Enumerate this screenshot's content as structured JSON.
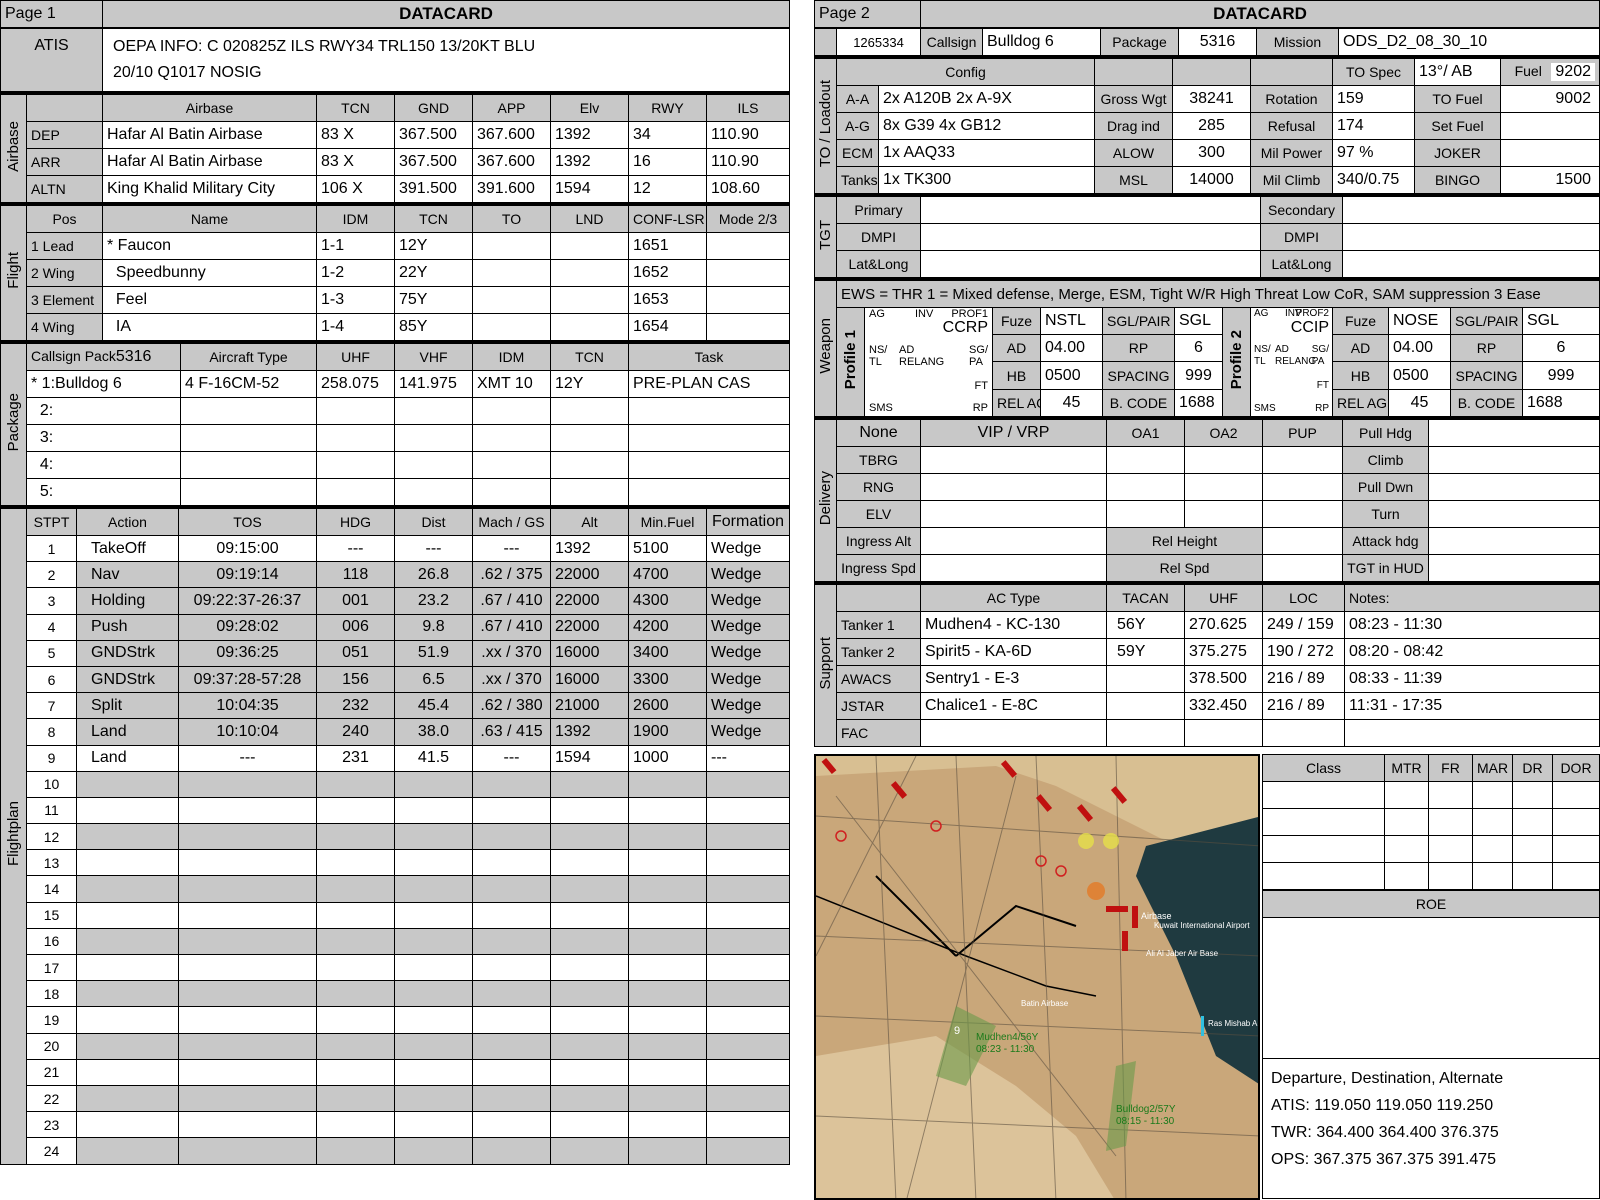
{
  "page1": {
    "page_label": "Page 1",
    "title": "DATACARD",
    "atis": {
      "label": "ATIS",
      "line1": "OEPA INFO: C 020825Z ILS RWY34 TRL150 13/20KT BLU",
      "line2": "20/10 Q1017  NOSIG"
    },
    "airbase": {
      "side": "Airbase",
      "headers": [
        "Airbase",
        "TCN",
        "GND",
        "APP",
        "Elv",
        "RWY",
        "ILS"
      ],
      "rows": [
        {
          "label": "DEP",
          "name": "Hafar Al Batin Airbase",
          "tcn": "83 X",
          "gnd": "367.500",
          "app": "367.600",
          "elv": "1392",
          "rwy": "34",
          "ils": "110.90"
        },
        {
          "label": "ARR",
          "name": "Hafar Al Batin Airbase",
          "tcn": "83 X",
          "gnd": "367.500",
          "app": "367.600",
          "elv": "1392",
          "rwy": "16",
          "ils": "110.90"
        },
        {
          "label": "ALTN",
          "name": "King Khalid Military City",
          "tcn": "106 X",
          "gnd": "391.500",
          "app": "391.600",
          "elv": "1594",
          "rwy": "12",
          "ils": "108.60"
        }
      ]
    },
    "flight": {
      "side": "Flight",
      "headers": [
        "Pos",
        "Name",
        "IDM",
        "TCN",
        "TO",
        "LND",
        "CONF-LSR",
        "Mode 2/3"
      ],
      "rows": [
        {
          "pos": "1 Lead",
          "name": "* Faucon",
          "idm": "1-1",
          "tcn": "12Y",
          "to": "",
          "lnd": "",
          "conf": "1651",
          "mode": ""
        },
        {
          "pos": "2 Wing",
          "name": "  Speedbunny",
          "idm": "1-2",
          "tcn": "22Y",
          "to": "",
          "lnd": "",
          "conf": "1652",
          "mode": ""
        },
        {
          "pos": "3 Element",
          "name": "  Feel",
          "idm": "1-3",
          "tcn": "75Y",
          "to": "",
          "lnd": "",
          "conf": "1653",
          "mode": ""
        },
        {
          "pos": "4 Wing",
          "name": "  IA",
          "idm": "1-4",
          "tcn": "85Y",
          "to": "",
          "lnd": "",
          "conf": "1654",
          "mode": ""
        }
      ]
    },
    "package": {
      "side": "Package",
      "callsign_label": "Callsign Pack",
      "callsign_value": "5316",
      "headers": [
        "Aircraft Type",
        "UHF",
        "VHF",
        "IDM",
        "TCN",
        "Task"
      ],
      "rows": [
        {
          "cs": "* 1:Bulldog 6",
          "type": "4 F-16CM-52",
          "uhf": "258.075",
          "vhf": "141.975",
          "idm": "XMT 10",
          "tcn": "12Y",
          "task": "PRE-PLAN CAS"
        },
        {
          "cs": "  2:",
          "type": "",
          "uhf": "",
          "vhf": "",
          "idm": "",
          "tcn": "",
          "task": ""
        },
        {
          "cs": "  3:",
          "type": "",
          "uhf": "",
          "vhf": "",
          "idm": "",
          "tcn": "",
          "task": ""
        },
        {
          "cs": "  4:",
          "type": "",
          "uhf": "",
          "vhf": "",
          "idm": "",
          "tcn": "",
          "task": ""
        },
        {
          "cs": "  5:",
          "type": "",
          "uhf": "",
          "vhf": "",
          "idm": "",
          "tcn": "",
          "task": ""
        }
      ]
    },
    "flightplan": {
      "side": "Flightplan",
      "headers": [
        "STPT",
        "Action",
        "TOS",
        "HDG",
        "Dist",
        "Mach / GS",
        "Alt",
        "Min.Fuel",
        "Formation"
      ],
      "rows": [
        {
          "n": "1",
          "action": "TakeOff",
          "tos": "09:15:00",
          "hdg": "---",
          "dist": "---",
          "mach": "---",
          "alt": "1392",
          "fuel": "5100",
          "form": "Wedge"
        },
        {
          "n": "2",
          "action": "Nav",
          "tos": "09:19:14",
          "hdg": "118",
          "dist": "26.8",
          "mach": ".62 / 375",
          "alt": "22000",
          "fuel": "4700",
          "form": "Wedge"
        },
        {
          "n": "3",
          "action": "Holding",
          "tos": "09:22:37-26:37",
          "hdg": "001",
          "dist": "23.2",
          "mach": ".67 / 410",
          "alt": "22000",
          "fuel": "4300",
          "form": "Wedge"
        },
        {
          "n": "4",
          "action": "Push",
          "tos": "09:28:02",
          "hdg": "006",
          "dist": "9.8",
          "mach": ".67 / 410",
          "alt": "22000",
          "fuel": "4200",
          "form": "Wedge"
        },
        {
          "n": "5",
          "action": "GNDStrk",
          "tos": "09:36:25",
          "hdg": "051",
          "dist": "51.9",
          "mach": ".xx / 370",
          "alt": "16000",
          "fuel": "3400",
          "form": "Wedge"
        },
        {
          "n": "6",
          "action": "GNDStrk",
          "tos": "09:37:28-57:28",
          "hdg": "156",
          "dist": "6.5",
          "mach": ".xx / 370",
          "alt": "16000",
          "fuel": "3300",
          "form": "Wedge"
        },
        {
          "n": "7",
          "action": "Split",
          "tos": "10:04:35",
          "hdg": "232",
          "dist": "45.4",
          "mach": ".62 / 380",
          "alt": "21000",
          "fuel": "2600",
          "form": "Wedge"
        },
        {
          "n": "8",
          "action": "Land",
          "tos": "10:10:04",
          "hdg": "240",
          "dist": "38.0",
          "mach": ".63 / 415",
          "alt": "1392",
          "fuel": "1900",
          "form": "Wedge"
        },
        {
          "n": "9",
          "action": "Land",
          "tos": "---",
          "hdg": "231",
          "dist": "41.5",
          "mach": "---",
          "alt": "1594",
          "fuel": "1000",
          "form": "---"
        },
        {
          "n": "10"
        },
        {
          "n": "11"
        },
        {
          "n": "12"
        },
        {
          "n": "13"
        },
        {
          "n": "14"
        },
        {
          "n": "15"
        },
        {
          "n": "16"
        },
        {
          "n": "17"
        },
        {
          "n": "18"
        },
        {
          "n": "19"
        },
        {
          "n": "20"
        },
        {
          "n": "21"
        },
        {
          "n": "22"
        },
        {
          "n": "23"
        },
        {
          "n": "24"
        }
      ]
    }
  },
  "page2": {
    "page_label": "Page 2",
    "title": "DATACARD",
    "top": {
      "id": "1265334",
      "callsign_label": "Callsign",
      "callsign": "Bulldog 6",
      "package_label": "Package",
      "package": "5316",
      "mission_label": "Mission",
      "mission": "ODS_D2_08_30_10"
    },
    "loadout": {
      "side": "TO / Loadout",
      "config_label": "Config",
      "rows": [
        {
          "l": "A-A",
          "v": "2x A120B 2x A-9X",
          "k1": "Gross Wgt",
          "v1": "38241",
          "k2": "Rotation",
          "v2": "159",
          "k3": "TO Fuel",
          "v3": "9002"
        },
        {
          "l": "A-G",
          "v": "8x G39 4x GB12",
          "k1": "Drag ind",
          "v1": "285",
          "k2": "Refusal",
          "v2": "174",
          "k3": "Set Fuel",
          "v3": ""
        },
        {
          "l": "ECM",
          "v": "1x AAQ33",
          "k1": "ALOW",
          "v1": "300",
          "k2": "Mil Power",
          "v2": "97 %",
          "k3": "JOKER",
          "v3": ""
        },
        {
          "l": "Tanks",
          "v": "1x TK300",
          "k1": "MSL",
          "v1": "14000",
          "k2": "Mil Climb",
          "v2": "340/0.75",
          "k3": "BINGO",
          "v3": "1500"
        }
      ],
      "to_spec_label": "TO Spec",
      "to_spec": "13°/ AB",
      "fuel_label": "Fuel",
      "fuel": "9202"
    },
    "tgt": {
      "side": "TGT",
      "rows": [
        {
          "l": "Primary",
          "r": "Secondary"
        },
        {
          "l": "DMPI",
          "r": "DMPI"
        },
        {
          "l": "Lat&Long",
          "r": "Lat&Long"
        }
      ]
    },
    "weapon": {
      "side": "Weapon",
      "ews": "EWS = THR 1 = Mixed defense, Merge, ESM, Tight W/R High Threat Low CoR, SAM suppression 3 Ease",
      "profile1": {
        "label": "Profile 1",
        "tag": "PROF1",
        "mode": "CCRP",
        "fuze": "NSTL",
        "ad": "04.00",
        "hb": "0500",
        "agl": "45",
        "sgl": "SGL",
        "rp": "6",
        "spacing": "999",
        "code": "1688"
      },
      "profile2": {
        "label": "Profile 2",
        "tag": "PROF2",
        "mode": "CCIP",
        "fuze": "NOSE",
        "ad": "04.00",
        "hb": "0500",
        "agl": "45",
        "sgl": "SGL",
        "rp": "6",
        "spacing": "999",
        "code": "1688"
      },
      "labels": {
        "fuze": "Fuze",
        "ad": "AD",
        "hb": "HB",
        "agl": "REL AGL",
        "sgl": "SGL/PAIR",
        "rp": "RP",
        "spacing": "SPACING",
        "code": "B. CODE"
      },
      "mfd": {
        "ag": "AG",
        "inv": "INV",
        "ns": "NS/\nTL",
        "adrel": "AD\nRELANG",
        "sgpa": "SG/\nPA",
        "ft": "FT",
        "sms": "SMS",
        "rp": "RP"
      }
    },
    "delivery": {
      "side": "Delivery",
      "headers": [
        "None",
        "VIP / VRP",
        "OA1",
        "OA2",
        "PUP",
        "Pull Hdg"
      ],
      "left": [
        "TBRG",
        "RNG",
        "ELV",
        "Ingress Alt",
        "Ingress Spd"
      ],
      "right": [
        "Climb",
        "Pull Dwn",
        "Turn",
        "Attack hdg",
        "TGT in HUD"
      ],
      "rel_height": "Rel Height",
      "rel_spd": "Rel Spd"
    },
    "support": {
      "side": "Support",
      "headers": [
        "AC Type",
        "TACAN",
        "UHF",
        "LOC",
        "Notes:"
      ],
      "rows": [
        {
          "l": "Tanker 1",
          "ac": "Mudhen4 - KC-130",
          "tacan": "56Y",
          "uhf": "270.625",
          "loc": "249 / 159",
          "note": "08:23 - 11:30"
        },
        {
          "l": "Tanker 2",
          "ac": "Spirit5 - KA-6D",
          "tacan": "59Y",
          "uhf": "375.275",
          "loc": "190 / 272",
          "note": "08:20 - 08:42"
        },
        {
          "l": "AWACS",
          "ac": "Sentry1 - E-3",
          "tacan": "",
          "uhf": "378.500",
          "loc": "216 / 89",
          "note": "08:33 - 11:39"
        },
        {
          "l": "JSTAR",
          "ac": "Chalice1 - E-8C",
          "tacan": "",
          "uhf": "332.450",
          "loc": "216 / 89",
          "note": "11:31 - 17:35"
        },
        {
          "l": "FAC",
          "ac": "",
          "tacan": "",
          "uhf": "",
          "loc": "",
          "note": ""
        }
      ]
    },
    "class_table": {
      "headers": [
        "Class",
        "MTR",
        "FR",
        "MAR",
        "DR",
        "DOR"
      ]
    },
    "roe": "ROE",
    "map": {
      "labels": [
        "Mudhen4/56Y",
        "08:23 - 11:30",
        "Bulldog2/57Y",
        "08:15 - 11:30",
        "Airbase",
        "Kuwait International Airport",
        "Ali Al Jaber Air Base",
        "Batin Airbase",
        "Ras Mishab A",
        "9"
      ]
    },
    "freqs": {
      "title": "Departure, Destination, Alternate",
      "atis": "ATIS: 119.050  119.050  119.250",
      "twr": "TWR: 364.400  364.400  376.375",
      "ops": "OPS: 367.375  367.375  391.475"
    }
  }
}
